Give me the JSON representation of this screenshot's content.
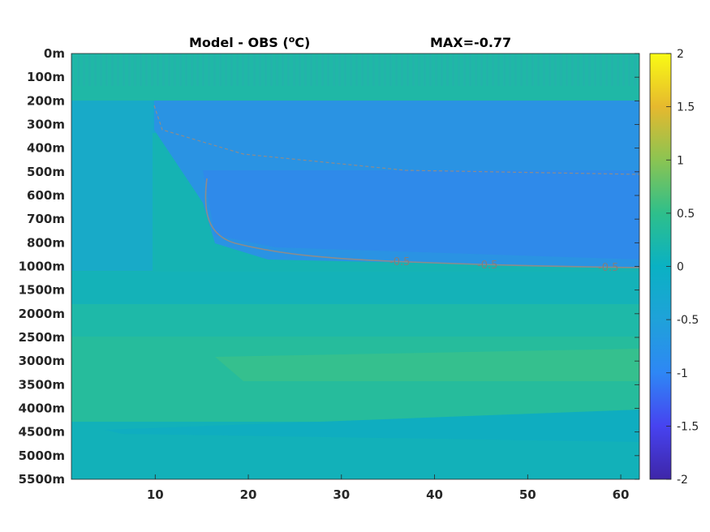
{
  "chart_data": {
    "type": "heatmap",
    "title_left": "Model - OBS (",
    "title_unit": "C)",
    "title_degree": "o",
    "title_right": "MAX=-0.77",
    "x_ticks": [
      "10",
      "20",
      "30",
      "40",
      "50",
      "60"
    ],
    "x_tick_values": [
      10,
      20,
      30,
      40,
      50,
      60
    ],
    "xlim": [
      1,
      62
    ],
    "y_ticks": [
      "0m",
      "100m",
      "200m",
      "300m",
      "400m",
      "500m",
      "600m",
      "700m",
      "800m",
      "1000m",
      "1500m",
      "2000m",
      "2500m",
      "3000m",
      "3500m",
      "4000m",
      "4500m",
      "5000m",
      "5500m"
    ],
    "colorbar": {
      "ticks": [
        "2",
        "1.5",
        "1",
        "0.5",
        "0",
        "-0.5",
        "-1",
        "-1.5",
        "-2"
      ],
      "tick_values": [
        2,
        1.5,
        1,
        0.5,
        0,
        -0.5,
        -1,
        -1.5,
        -2
      ],
      "range": [
        -2,
        2
      ],
      "colormap": "parula",
      "colors": [
        "#3e26a8",
        "#4743f0",
        "#2e87f5",
        "#1fa2d9",
        "#0ab1c3",
        "#2ebf8b",
        "#8bc452",
        "#e6b92e",
        "#f9fb14"
      ]
    },
    "contour_label": "-0.5",
    "contour_labels_on_1000m": [
      "-0.5",
      "-0.5",
      "-0.5"
    ],
    "max_value": -0.77,
    "field_summary": {
      "0-200m": "near 0 to slightly positive, vertical streaks",
      "200-1000m": "negative bias, minimum about -0.77 at 600-800m from x=15 to x=62",
      "1000-2500m": "near 0 to +0.2",
      "2500-4500m": "about +0.1 to +0.2",
      "4500-5500m": "about 0 to +0.1"
    }
  }
}
